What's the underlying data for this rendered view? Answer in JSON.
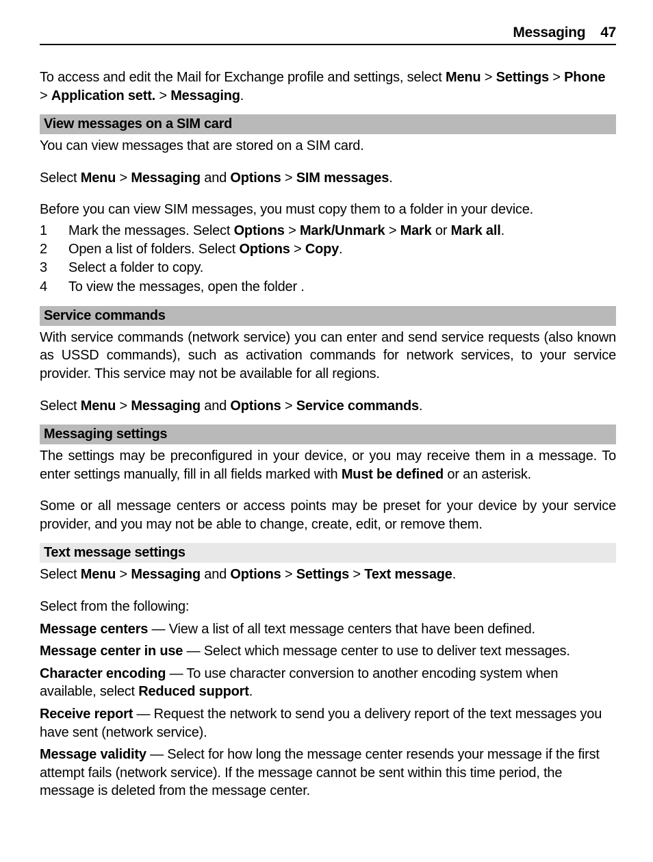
{
  "header": {
    "title": "Messaging",
    "page": "47"
  },
  "intro": {
    "pre": "To access and edit the Mail for Exchange profile and settings, select ",
    "b1": "Menu",
    "s1": " > ",
    "b2": "Settings",
    "s2": " > ",
    "b3": "Phone",
    "s3": " > ",
    "b4": "Application sett.",
    "s4": " > ",
    "b5": "Messaging",
    "s5": "."
  },
  "sim": {
    "heading": "View messages on a SIM card",
    "p1": "You can view messages that are stored on a SIM card.",
    "select": {
      "pre": "Select ",
      "b1": "Menu",
      "s1": " > ",
      "b2": "Messaging",
      "mid": " and ",
      "b3": "Options",
      "s2": " > ",
      "b4": "SIM messages",
      "post": "."
    },
    "p2": "Before you can view SIM messages, you must copy them to a folder in your device.",
    "steps": {
      "s1": {
        "pre": "Mark the messages. Select ",
        "b1": "Options",
        "sep1": " > ",
        "b2": "Mark/Unmark",
        "sep2": " > ",
        "b3": "Mark",
        "mid": " or ",
        "b4": "Mark all",
        "post": "."
      },
      "s2": {
        "pre": "Open a list of folders. Select ",
        "b1": "Options",
        "sep1": " > ",
        "b2": "Copy",
        "post": "."
      },
      "s3": "Select a folder to copy.",
      "s4": "To view the messages, open the folder ."
    }
  },
  "svc": {
    "heading": "Service commands",
    "p1": "With service commands (network service) you can enter and send service requests (also known as USSD commands), such as activation commands for network services, to your service provider. This service may not be available for all regions.",
    "select": {
      "pre": "Select ",
      "b1": "Menu",
      "s1": " > ",
      "b2": "Messaging",
      "mid": " and ",
      "b3": "Options",
      "s2": " > ",
      "b4": "Service commands",
      "post": "."
    }
  },
  "msgset": {
    "heading": "Messaging settings",
    "p1a": "The settings may be preconfigured in your device, or you may receive them in a message. To enter settings manually, fill in all fields marked with ",
    "p1b": "Must be defined",
    "p1c": " or an asterisk.",
    "p2": "Some or all message centers or access points may be preset for your device by your service provider, and you may not be able to change, create, edit, or remove them."
  },
  "txt": {
    "heading": "Text message settings",
    "select": {
      "pre": "Select ",
      "b1": "Menu",
      "s1": " > ",
      "b2": "Messaging",
      "mid": " and ",
      "b3": "Options",
      "s2": " > ",
      "b4": "Settings",
      "s3": " > ",
      "b5": "Text message",
      "post": "."
    },
    "lead": "Select from the following:",
    "d1": {
      "term": "Message centers",
      "sep": "  — ",
      "desc": "View a list of all text message centers that have been defined."
    },
    "d2": {
      "term": "Message center in use",
      "sep": "  — ",
      "desc": "Select which message center to use to deliver text messages."
    },
    "d3": {
      "term": "Character encoding",
      "sep": "  — ",
      "desc_a": "To use character conversion to another encoding system when available, select ",
      "desc_b": "Reduced support",
      "desc_c": "."
    },
    "d4": {
      "term": "Receive report",
      "sep": "  — ",
      "desc": "Request the network to send you a delivery report of the text messages you have sent (network service)."
    },
    "d5": {
      "term": "Message validity",
      "sep": "  — ",
      "desc": "Select for how long the message center resends your message if the first attempt fails (network service). If the message cannot be sent within this time period, the message is deleted from the message center."
    }
  }
}
